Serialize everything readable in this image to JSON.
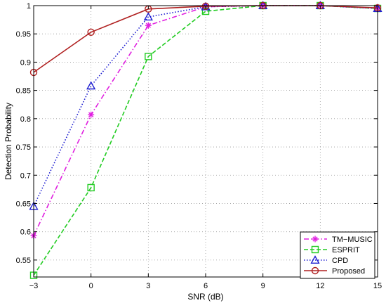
{
  "chart_data": {
    "type": "line",
    "xlabel": "SNR (dB)",
    "ylabel": "Detection Probability",
    "x": [
      -3,
      0,
      3,
      6,
      9,
      12,
      15
    ],
    "xticks": [
      -3,
      0,
      3,
      6,
      9,
      12,
      15
    ],
    "xlim": [
      -3,
      15
    ],
    "yticks": [
      0.55,
      0.6,
      0.65,
      0.7,
      0.75,
      0.8,
      0.85,
      0.9,
      0.95,
      1
    ],
    "ylim": [
      0.52,
      1.0
    ],
    "grid": true,
    "legend_position": "bottom-right",
    "series": [
      {
        "name": "TM−MUSIC",
        "values": [
          0.593,
          0.807,
          0.965,
          0.998,
          1.0,
          1.0,
          0.995
        ],
        "color": "#e020e0",
        "marker": "asterisk",
        "dash": "dash-dot"
      },
      {
        "name": "ESPRIT",
        "values": [
          0.523,
          0.678,
          0.91,
          0.99,
          1.0,
          1.0,
          0.995
        ],
        "color": "#22cc22",
        "marker": "square",
        "dash": "dashed"
      },
      {
        "name": "CPD",
        "values": [
          0.645,
          0.858,
          0.98,
          0.998,
          1.0,
          1.0,
          0.995
        ],
        "color": "#1a1ad0",
        "marker": "triangle",
        "dash": "dotted"
      },
      {
        "name": "Proposed",
        "values": [
          0.882,
          0.953,
          0.994,
          0.999,
          1.0,
          1.0,
          0.996
        ],
        "color": "#b02020",
        "marker": "circle",
        "dash": "solid"
      }
    ]
  }
}
